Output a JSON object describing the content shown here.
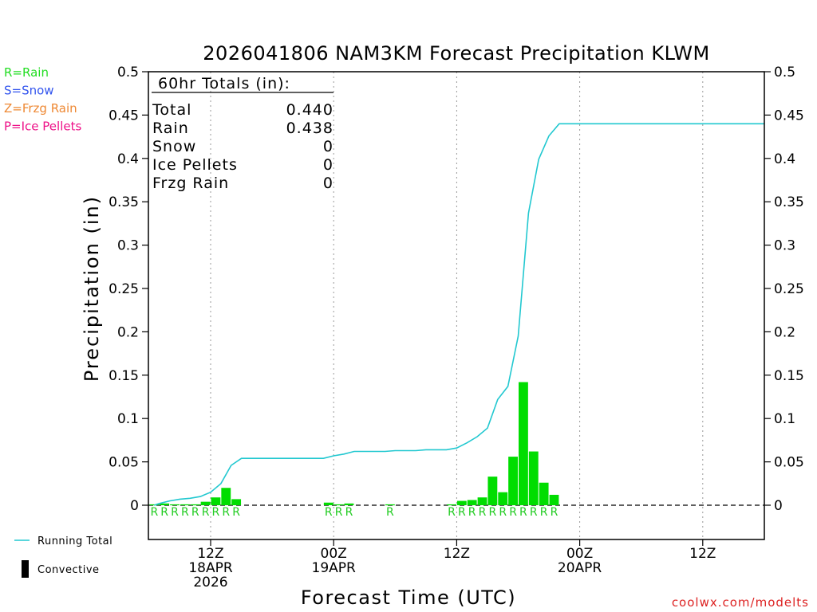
{
  "chart_data": {
    "type": "bar",
    "title": "2026041806 NAM3KM Forecast Precipitation KLWM",
    "xlabel": "Forecast Time (UTC)",
    "ylabel": "Precipitation (in)",
    "ylim": [
      -0.04,
      0.5
    ],
    "xlim_hours": [
      0,
      60
    ],
    "y_ticks": [
      0,
      0.05,
      0.1,
      0.15,
      0.2,
      0.25,
      0.3,
      0.35,
      0.4,
      0.45,
      0.5
    ],
    "y_tick_labels": [
      "0",
      "0.05",
      "0.1",
      "0.15",
      "0.2",
      "0.25",
      "0.3",
      "0.35",
      "0.4",
      "0.45",
      "0.5"
    ],
    "x_ticks": [
      {
        "hour": 6,
        "lines": [
          "12Z",
          "18APR",
          "2026"
        ]
      },
      {
        "hour": 18,
        "lines": [
          "00Z",
          "19APR"
        ]
      },
      {
        "hour": 30,
        "lines": [
          "12Z"
        ]
      },
      {
        "hour": 42,
        "lines": [
          "00Z",
          "20APR"
        ]
      },
      {
        "hour": 54,
        "lines": [
          "12Z"
        ]
      }
    ],
    "series": [
      {
        "name": "Hourly Rain",
        "color": "#00dd00",
        "hours": [
          1,
          2,
          3,
          4,
          5,
          6,
          7,
          8,
          9,
          10,
          11,
          12,
          13,
          14,
          15,
          16,
          17,
          18,
          19,
          20,
          21,
          22,
          23,
          24,
          25,
          26,
          27,
          28,
          29,
          30,
          31,
          32,
          33,
          34,
          35,
          36,
          37,
          38,
          39,
          40,
          41,
          42,
          43,
          44,
          45,
          46,
          47,
          48,
          49,
          50,
          51,
          52,
          53,
          54,
          55,
          56,
          57,
          58,
          59,
          60
        ],
        "values": [
          0.001,
          0.002,
          0.001,
          0.001,
          0.001,
          0.004,
          0.009,
          0.02,
          0.007,
          0,
          0,
          0,
          0,
          0,
          0,
          0,
          0,
          0.003,
          0.001,
          0.002,
          0,
          0,
          0,
          0.001,
          0,
          0,
          0,
          0,
          0,
          0.001,
          0.005,
          0.006,
          0.009,
          0.033,
          0.015,
          0.056,
          0.142,
          0.062,
          0.026,
          0.012,
          0,
          0,
          0,
          0,
          0,
          0,
          0,
          0,
          0,
          0,
          0,
          0,
          0,
          0,
          0,
          0,
          0,
          0,
          0,
          0
        ]
      },
      {
        "name": "Running Total",
        "color": "#22c8d0",
        "hours": [
          0.5,
          1,
          2,
          3,
          4,
          5,
          6,
          7,
          8,
          9,
          10,
          11,
          12,
          13,
          14,
          15,
          16,
          17,
          18,
          19,
          20,
          21,
          22,
          23,
          24,
          25,
          26,
          27,
          28,
          29,
          30,
          31,
          32,
          33,
          34,
          35,
          36,
          37,
          38,
          39,
          40,
          41,
          42,
          43,
          44,
          45,
          46,
          47,
          48,
          49,
          50,
          51,
          52,
          53,
          54,
          55,
          56,
          57,
          58,
          59,
          60
        ],
        "values": [
          0,
          0.002,
          0.005,
          0.007,
          0.008,
          0.01,
          0.015,
          0.025,
          0.046,
          0.054,
          0.054,
          0.054,
          0.054,
          0.054,
          0.054,
          0.054,
          0.054,
          0.054,
          0.057,
          0.059,
          0.062,
          0.062,
          0.062,
          0.062,
          0.063,
          0.063,
          0.063,
          0.064,
          0.064,
          0.064,
          0.066,
          0.072,
          0.079,
          0.089,
          0.122,
          0.137,
          0.195,
          0.337,
          0.399,
          0.426,
          0.44,
          0.44,
          0.44,
          0.44,
          0.44,
          0.44,
          0.44,
          0.44,
          0.44,
          0.44,
          0.44,
          0.44,
          0.44,
          0.44,
          0.44,
          0.44,
          0.44,
          0.44,
          0.44,
          0.44,
          0.44
        ]
      }
    ],
    "type_letters": [
      {
        "hour": 1,
        "text": "R"
      },
      {
        "hour": 2,
        "text": "R"
      },
      {
        "hour": 3,
        "text": "R"
      },
      {
        "hour": 4,
        "text": "R"
      },
      {
        "hour": 5,
        "text": "R"
      },
      {
        "hour": 6,
        "text": "R"
      },
      {
        "hour": 7,
        "text": "R"
      },
      {
        "hour": 8,
        "text": "R"
      },
      {
        "hour": 9,
        "text": "R"
      },
      {
        "hour": 18,
        "text": "R"
      },
      {
        "hour": 19,
        "text": "R"
      },
      {
        "hour": 20,
        "text": "R"
      },
      {
        "hour": 24,
        "text": "R"
      },
      {
        "hour": 30,
        "text": "R"
      },
      {
        "hour": 31,
        "text": "R"
      },
      {
        "hour": 32,
        "text": "R"
      },
      {
        "hour": 33,
        "text": "R"
      },
      {
        "hour": 34,
        "text": "R"
      },
      {
        "hour": 35,
        "text": "R"
      },
      {
        "hour": 36,
        "text": "R"
      },
      {
        "hour": 37,
        "text": "R"
      },
      {
        "hour": 38,
        "text": "R"
      },
      {
        "hour": 39,
        "text": "R"
      },
      {
        "hour": 40,
        "text": "R"
      }
    ],
    "totals_box": {
      "header": "60hr Totals (in):",
      "rows": [
        {
          "label": "Total",
          "value": "0.440"
        },
        {
          "label": "Rain",
          "value": "0.438"
        },
        {
          "label": "Snow",
          "value": "0"
        },
        {
          "label": "Ice Pellets",
          "value": "0"
        },
        {
          "label": "Frzg Rain",
          "value": "0"
        }
      ]
    },
    "type_legend": [
      {
        "text": "R=Rain",
        "color": "#22dd22"
      },
      {
        "text": "S=Snow",
        "color": "#3355ee"
      },
      {
        "text": "Z=Frzg Rain",
        "color": "#ee8833"
      },
      {
        "text": "P=Ice Pellets",
        "color": "#ee1188"
      }
    ],
    "line_legend": [
      {
        "text": "Running Total",
        "color": "#22c8d0",
        "kind": "line"
      },
      {
        "text": "Convective",
        "color": "#000000",
        "kind": "bar"
      }
    ],
    "credit": "coolwx.com/modelts",
    "credit_color": "#dd2222"
  }
}
